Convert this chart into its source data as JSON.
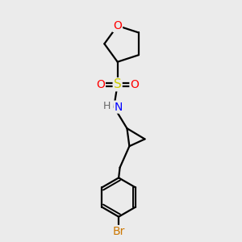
{
  "bg_color": "#ebebeb",
  "atom_colors": {
    "O": "#ff0000",
    "S": "#cccc00",
    "N": "#0000ff",
    "Br": "#cc7700",
    "C": "#000000",
    "H": "#666666"
  },
  "bond_color": "#000000",
  "bond_width": 1.6
}
